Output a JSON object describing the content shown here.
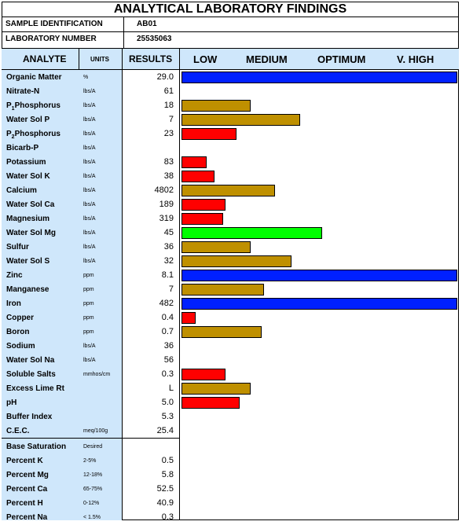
{
  "title": "ANALYTICAL LABORATORY FINDINGS",
  "sample_id": {
    "label": "SAMPLE IDENTIFICATION",
    "value": "AB01"
  },
  "lab_number": {
    "label": "LABORATORY NUMBER",
    "value": "25535063"
  },
  "headers": {
    "analyte": "ANALYTE",
    "units": "UNITS",
    "results": "RESULTS",
    "low": "LOW",
    "medium": "MEDIUM",
    "optimum": "OPTIMUM",
    "vhigh": "V. HIGH"
  },
  "colors": {
    "blue": "#0020ff",
    "gold": "#bf9000",
    "red": "#ff0000",
    "green": "#00ff00",
    "header_bg": "#cfe7fb"
  },
  "chart_data": {
    "type": "bar",
    "categories": [
      "LOW",
      "MEDIUM",
      "OPTIMUM",
      "V. HIGH"
    ],
    "scale_note": "bar length is a level on a 0-1 scale spanning LOW to V. HIGH",
    "rows": [
      {
        "name": "Organic Matter",
        "unit": "%",
        "value": "29.0",
        "level": 1.0,
        "color": "blue"
      },
      {
        "name": "Nitrate-N",
        "unit": "lbs/A",
        "value": "61",
        "level": 0,
        "color": ""
      },
      {
        "name": "P1Phosphorus",
        "display": [
          "P",
          "1",
          "Phosphorus"
        ],
        "unit": "lbs/A",
        "value": "18",
        "level": 0.25,
        "color": "gold"
      },
      {
        "name": "Water Sol P",
        "unit": "lbs/A",
        "value": "7",
        "level": 0.43,
        "color": "gold"
      },
      {
        "name": "P2Phosphorus",
        "display": [
          "P",
          "2",
          "Phosphorus"
        ],
        "unit": "lbs/A",
        "value": "23",
        "level": 0.2,
        "color": "red"
      },
      {
        "name": "Bicarb-P",
        "unit": "lbs/A",
        "value": "",
        "level": 0,
        "color": ""
      },
      {
        "name": "Potassium",
        "unit": "lbs/A",
        "value": "83",
        "level": 0.09,
        "color": "red"
      },
      {
        "name": "Water Sol K",
        "unit": "lbs/A",
        "value": "38",
        "level": 0.12,
        "color": "red"
      },
      {
        "name": "Calcium",
        "unit": "lbs/A",
        "value": "4802",
        "level": 0.34,
        "color": "gold"
      },
      {
        "name": "Water Sol Ca",
        "unit": "lbs/A",
        "value": "189",
        "level": 0.16,
        "color": "red"
      },
      {
        "name": "Magnesium",
        "unit": "lbs/A",
        "value": "319",
        "level": 0.15,
        "color": "red"
      },
      {
        "name": "Water Sol Mg",
        "unit": "lbs/A",
        "value": "45",
        "level": 0.51,
        "color": "green"
      },
      {
        "name": "Sulfur",
        "unit": "lbs/A",
        "value": "36",
        "level": 0.25,
        "color": "gold"
      },
      {
        "name": "Water Sol S",
        "unit": "lbs/A",
        "value": "32",
        "level": 0.4,
        "color": "gold"
      },
      {
        "name": "Zinc",
        "unit": "ppm",
        "value": "8.1",
        "level": 1.0,
        "color": "blue"
      },
      {
        "name": "Manganese",
        "unit": "ppm",
        "value": "7",
        "level": 0.3,
        "color": "gold"
      },
      {
        "name": "Iron",
        "unit": "ppm",
        "value": "482",
        "level": 1.0,
        "color": "blue"
      },
      {
        "name": "Copper",
        "unit": "ppm",
        "value": "0.4",
        "level": 0.05,
        "color": "red"
      },
      {
        "name": "Boron",
        "unit": "ppm",
        "value": "0.7",
        "level": 0.29,
        "color": "gold"
      },
      {
        "name": "Sodium",
        "unit": "lbs/A",
        "value": "36",
        "level": 0,
        "color": ""
      },
      {
        "name": "Water Sol Na",
        "unit": "lbs/A",
        "value": "56",
        "level": 0,
        "color": ""
      },
      {
        "name": "Soluble Salts",
        "unit": "mmhos/cm",
        "value": "0.3",
        "level": 0.16,
        "color": "red"
      },
      {
        "name": "Excess Lime Rt",
        "unit": "",
        "value": "L",
        "level": 0.25,
        "color": "gold"
      },
      {
        "name": "pH",
        "unit": "",
        "value": "5.0",
        "level": 0.21,
        "color": "red"
      },
      {
        "name": "Buffer Index",
        "unit": "",
        "value": "5.3",
        "level": 0,
        "color": ""
      },
      {
        "name": "C.E.C.",
        "unit": "meq/100g",
        "value": "25.4",
        "level": 0,
        "color": ""
      },
      {
        "name": "Base Saturation",
        "unit": "Desired",
        "value": "",
        "level": 0,
        "color": ""
      },
      {
        "name": "Percent K",
        "unit": "2-5%",
        "value": "0.5",
        "level": 0,
        "color": ""
      },
      {
        "name": "Percent Mg",
        "unit": "12-18%",
        "value": "5.8",
        "level": 0,
        "color": ""
      },
      {
        "name": "Percent Ca",
        "unit": "65-75%",
        "value": "52.5",
        "level": 0,
        "color": ""
      },
      {
        "name": "Percent H",
        "unit": "0-12%",
        "value": "40.9",
        "level": 0,
        "color": ""
      },
      {
        "name": "Percent Na",
        "unit": "< 1.5%",
        "value": "0.3",
        "level": 0,
        "color": ""
      }
    ]
  }
}
